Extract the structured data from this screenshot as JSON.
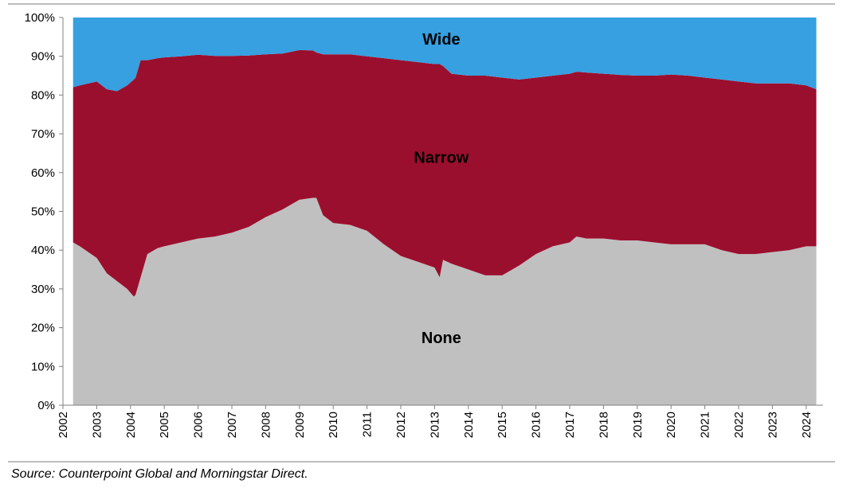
{
  "chart_data": {
    "type": "area",
    "stacked": true,
    "percent": true,
    "x_unit": "year",
    "xlim": [
      2002,
      2024.5
    ],
    "ylim": [
      0,
      100
    ],
    "y_ticks": [
      0,
      10,
      20,
      30,
      40,
      50,
      60,
      70,
      80,
      90,
      100
    ],
    "y_tick_labels": [
      "0%",
      "10%",
      "20%",
      "30%",
      "40%",
      "50%",
      "60%",
      "70%",
      "80%",
      "90%",
      "100%"
    ],
    "x_ticks": [
      2002,
      2003,
      2004,
      2005,
      2006,
      2007,
      2008,
      2009,
      2010,
      2011,
      2012,
      2013,
      2014,
      2015,
      2016,
      2017,
      2018,
      2019,
      2020,
      2021,
      2022,
      2023,
      2024
    ],
    "x_tick_labels": [
      "2002",
      "2003",
      "2004",
      "2005",
      "2006",
      "2007",
      "2008",
      "2009",
      "2010",
      "2011",
      "2012",
      "2013",
      "2014",
      "2015",
      "2016",
      "2017",
      "2018",
      "2019",
      "2020",
      "2021",
      "2022",
      "2023",
      "2024"
    ],
    "x": [
      2002.3,
      2002.5,
      2003.0,
      2003.3,
      2003.6,
      2003.9,
      2004.1,
      2004.15,
      2004.3,
      2004.5,
      2004.8,
      2005.0,
      2005.5,
      2006.0,
      2006.5,
      2007.0,
      2007.5,
      2008.0,
      2008.5,
      2009.0,
      2009.4,
      2009.5,
      2009.7,
      2010.0,
      2010.5,
      2011.0,
      2011.5,
      2012.0,
      2012.5,
      2013.0,
      2013.15,
      2013.25,
      2013.5,
      2014.0,
      2014.5,
      2015.0,
      2015.5,
      2016.0,
      2016.5,
      2017.0,
      2017.2,
      2017.5,
      2018.0,
      2018.5,
      2019.0,
      2019.5,
      2020.0,
      2020.5,
      2021.0,
      2021.5,
      2022.0,
      2022.5,
      2023.0,
      2023.5,
      2024.0,
      2024.3
    ],
    "series": [
      {
        "name": "None",
        "color": "#c0c0c0",
        "values": [
          42.0,
          41.0,
          38.0,
          34.0,
          32.0,
          30.0,
          28.0,
          28.5,
          33.0,
          39.0,
          40.5,
          41.0,
          42.0,
          43.0,
          43.5,
          44.5,
          46.0,
          48.5,
          50.5,
          53.0,
          53.5,
          53.5,
          49.0,
          47.0,
          46.5,
          45.0,
          41.5,
          38.5,
          37.0,
          35.5,
          33.0,
          37.5,
          36.5,
          35.0,
          33.5,
          33.5,
          36.0,
          39.0,
          41.0,
          42.0,
          43.5,
          43.0,
          43.0,
          42.5,
          42.5,
          42.0,
          41.5,
          41.5,
          41.5,
          40.0,
          39.0,
          39.0,
          39.5,
          40.0,
          41.0,
          41.0
        ]
      },
      {
        "name": "Narrow",
        "color": "#9b0f2e",
        "values": [
          40.0,
          41.5,
          45.5,
          47.5,
          49.0,
          52.5,
          56.0,
          56.0,
          56.0,
          50.0,
          49.0,
          48.7,
          48.0,
          47.4,
          46.6,
          45.6,
          44.2,
          42.0,
          40.2,
          38.6,
          38.0,
          37.5,
          41.5,
          43.5,
          44.0,
          45.0,
          48.0,
          50.5,
          51.5,
          52.5,
          55.0,
          50.0,
          49.0,
          50.0,
          51.5,
          51.0,
          48.0,
          45.5,
          44.0,
          43.5,
          42.5,
          42.8,
          42.5,
          42.7,
          42.5,
          43.0,
          43.8,
          43.5,
          43.0,
          44.0,
          44.5,
          44.0,
          43.5,
          43.0,
          41.5,
          40.5
        ]
      },
      {
        "name": "Wide",
        "color": "#36a0e0",
        "values": [
          18.0,
          17.5,
          16.5,
          18.5,
          19.0,
          17.5,
          16.0,
          15.5,
          11.0,
          11.0,
          10.5,
          10.3,
          10.0,
          9.6,
          9.9,
          9.9,
          9.8,
          9.5,
          9.3,
          8.4,
          8.5,
          9.0,
          9.5,
          9.5,
          9.5,
          10.0,
          10.5,
          11.0,
          11.5,
          12.0,
          12.0,
          12.5,
          14.5,
          15.0,
          15.0,
          15.5,
          16.0,
          15.5,
          15.0,
          14.5,
          14.0,
          14.2,
          14.5,
          14.8,
          15.0,
          15.0,
          14.7,
          15.0,
          15.5,
          16.0,
          16.5,
          17.0,
          17.0,
          17.0,
          17.5,
          18.5
        ]
      }
    ],
    "series_labels": [
      {
        "text": "Wide",
        "x": 2013.2,
        "y": 94.5
      },
      {
        "text": "Narrow",
        "x": 2013.2,
        "y": 64.0
      },
      {
        "text": "None",
        "x": 2013.2,
        "y": 17.5
      }
    ]
  },
  "source_note": "Source: Counterpoint Global and Morningstar Direct."
}
